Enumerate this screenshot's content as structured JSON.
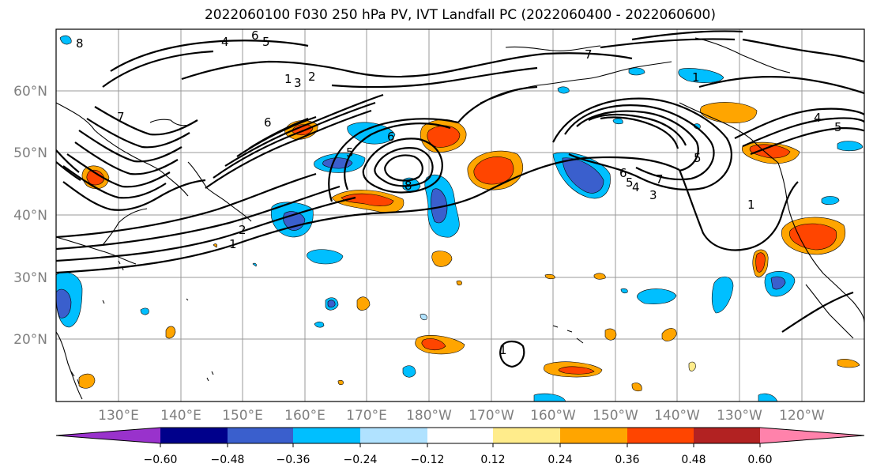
{
  "title": "2022060100 F030 250 hPa PV, IVT Landfall PC (2022060400 - 2022060600)",
  "lat_labels": [
    "60°N",
    "50°N",
    "40°N",
    "30°N",
    "20°N"
  ],
  "lon_labels": [
    "130°E",
    "140°E",
    "150°E",
    "160°E",
    "170°E",
    "180°W",
    "170°W",
    "160°W",
    "150°W",
    "140°W",
    "130°W",
    "120°W"
  ],
  "colorbar": {
    "colors": [
      "#9932CC",
      "#00008B",
      "#3A5FCD",
      "#00BFFF",
      "#B0E2FF",
      "#FFFFFF",
      "#FFEC8B",
      "#FFA500",
      "#FF4500",
      "#B22222",
      "#FF82AB"
    ],
    "ticks": [
      "−0.60",
      "−0.48",
      "−0.36",
      "−0.24",
      "−0.12",
      "0.12",
      "0.24",
      "0.36",
      "0.48",
      "0.60"
    ]
  },
  "contour_labels": [
    "8",
    "6",
    "5",
    "4",
    "3",
    "2",
    "1",
    "7",
    "6",
    "6",
    "5",
    "2",
    "1",
    "8",
    "7",
    "1",
    "6",
    "5",
    "4",
    "3",
    "7",
    "5",
    "4",
    "5",
    "1",
    "1"
  ]
}
